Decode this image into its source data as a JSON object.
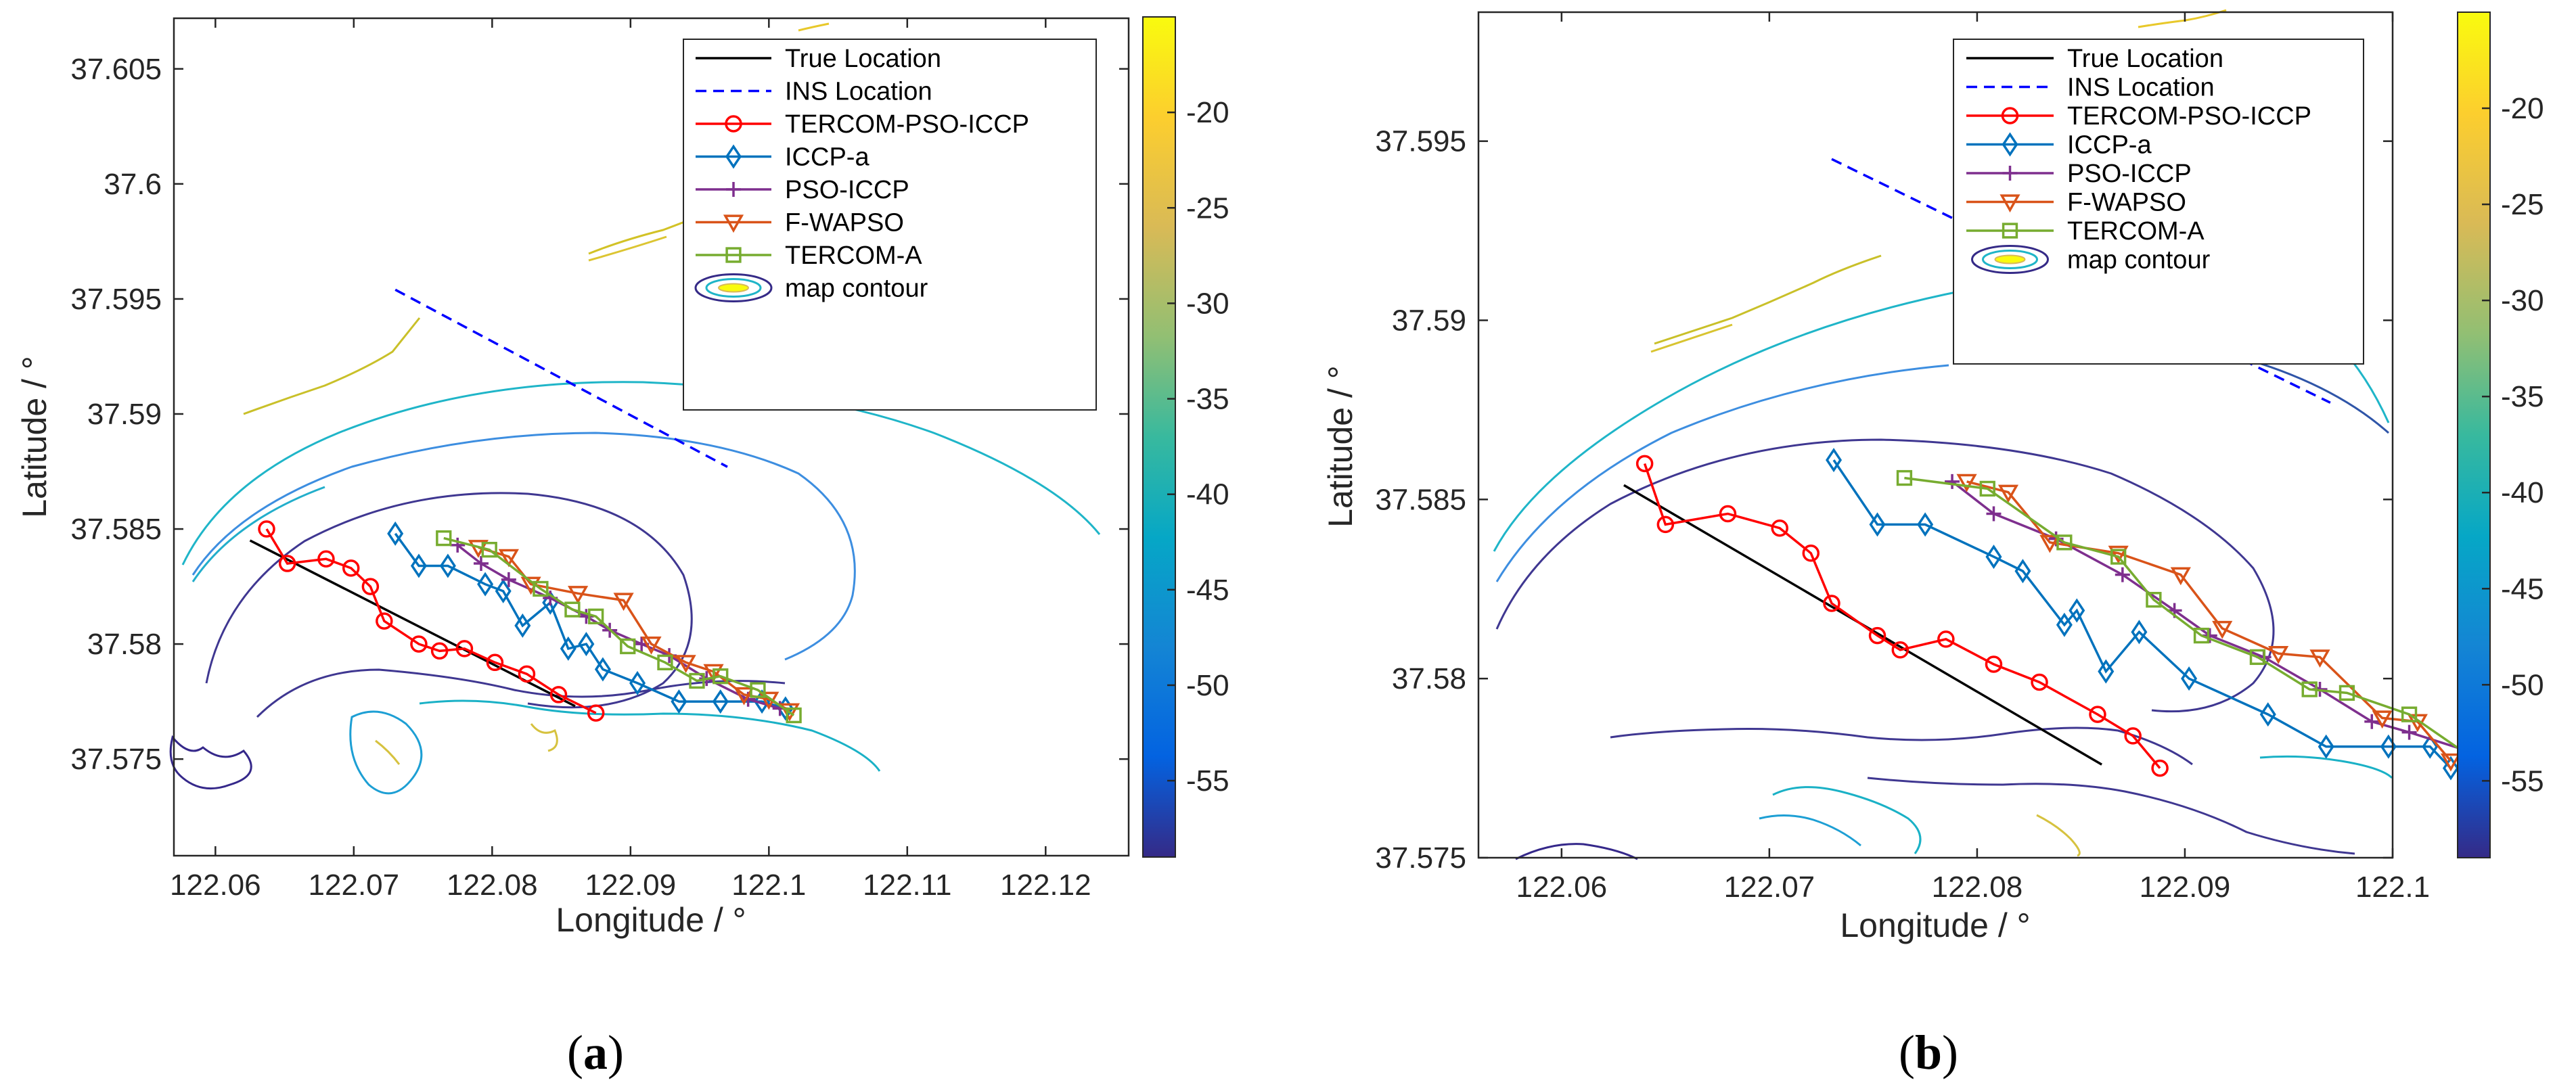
{
  "chart_data": [
    {
      "id": "a",
      "type": "line",
      "caption_letter": "a",
      "xlabel": "Longitude / °",
      "ylabel": "Latitude / °",
      "xlim": [
        122.057,
        122.126
      ],
      "ylim": [
        37.5708,
        37.6072
      ],
      "xticks": [
        122.06,
        122.07,
        122.08,
        122.09,
        122.1,
        122.11,
        122.12
      ],
      "xtick_labels": [
        "122.06",
        "122.07",
        "122.08",
        "122.09",
        "122.1",
        "122.11",
        "122.12"
      ],
      "yticks": [
        37.575,
        37.58,
        37.585,
        37.59,
        37.595,
        37.6,
        37.605
      ],
      "ytick_labels": [
        "37.575",
        "37.58",
        "37.585",
        "37.59",
        "37.595",
        "37.6",
        "37.605"
      ],
      "colorbar": {
        "min": -59,
        "max": -15,
        "ticks": [
          -20,
          -25,
          -30,
          -35,
          -40,
          -45,
          -50,
          -55
        ],
        "tick_labels": [
          "-20",
          "-25",
          "-30",
          "-35",
          "-40",
          "-45",
          "-50",
          "-55"
        ]
      },
      "legend_placement": "top-right",
      "series": [
        {
          "name": "True Location",
          "color": "#000000",
          "marker": "none",
          "dash": false,
          "points": [
            [
              122.0625,
              37.5845
            ],
            [
              122.086,
              37.5773
            ]
          ]
        },
        {
          "name": "INS Location",
          "color": "#0000ff",
          "marker": "none",
          "dash": true,
          "points": [
            [
              122.073,
              37.5954
            ],
            [
              122.097,
              37.5877
            ]
          ]
        },
        {
          "name": "TERCOM-PSO-ICCP",
          "color": "#ff0000",
          "marker": "circle",
          "dash": false,
          "points": [
            [
              122.0637,
              37.585
            ],
            [
              122.0652,
              37.5835
            ],
            [
              122.068,
              37.5837
            ],
            [
              122.0698,
              37.5833
            ],
            [
              122.0712,
              37.5825
            ],
            [
              122.0722,
              37.581
            ],
            [
              122.0747,
              37.58
            ],
            [
              122.0762,
              37.5797
            ],
            [
              122.078,
              37.5798
            ],
            [
              122.0802,
              37.5792
            ],
            [
              122.0825,
              37.5787
            ],
            [
              122.0848,
              37.5778
            ],
            [
              122.0875,
              37.577
            ]
          ]
        },
        {
          "name": "ICCP-a",
          "color": "#0072bd",
          "marker": "diamond",
          "dash": false,
          "points": [
            [
              122.073,
              37.5848
            ],
            [
              122.0747,
              37.5834
            ],
            [
              122.0768,
              37.5834
            ],
            [
              122.0795,
              37.5826
            ],
            [
              122.0808,
              37.5823
            ],
            [
              122.0822,
              37.5808
            ],
            [
              122.0842,
              37.5818
            ],
            [
              122.0855,
              37.5798
            ],
            [
              122.0868,
              37.58
            ],
            [
              122.088,
              37.5789
            ],
            [
              122.0905,
              37.5783
            ],
            [
              122.0935,
              37.5775
            ],
            [
              122.0965,
              37.5775
            ],
            [
              122.0995,
              37.5775
            ],
            [
              122.1012,
              37.5772
            ]
          ]
        },
        {
          "name": "PSO-ICCP",
          "color": "#7e2f8e",
          "marker": "plus",
          "dash": false,
          "points": [
            [
              122.0775,
              37.5843
            ],
            [
              122.0792,
              37.5835
            ],
            [
              122.0812,
              37.5828
            ],
            [
              122.0842,
              37.582
            ],
            [
              122.0868,
              37.5812
            ],
            [
              122.0885,
              37.5806
            ],
            [
              122.0908,
              37.58
            ],
            [
              122.0928,
              37.5795
            ],
            [
              122.0955,
              37.5785
            ],
            [
              122.0985,
              37.5776
            ],
            [
              122.1008,
              37.5772
            ]
          ]
        },
        {
          "name": "F-WAPSO",
          "color": "#d95319",
          "marker": "triangle-down",
          "dash": false,
          "points": [
            [
              122.079,
              37.5842
            ],
            [
              122.0812,
              37.5838
            ],
            [
              122.0828,
              37.5826
            ],
            [
              122.0862,
              37.5822
            ],
            [
              122.0895,
              37.5819
            ],
            [
              122.0915,
              37.58
            ],
            [
              122.094,
              37.5792
            ],
            [
              122.096,
              37.5788
            ],
            [
              122.0982,
              37.5778
            ],
            [
              122.1,
              37.5776
            ],
            [
              122.1015,
              37.5771
            ]
          ]
        },
        {
          "name": "TERCOM-A",
          "color": "#77ac30",
          "marker": "square",
          "dash": false,
          "points": [
            [
              122.0765,
              37.5846
            ],
            [
              122.0798,
              37.5841
            ],
            [
              122.0835,
              37.5824
            ],
            [
              122.0858,
              37.5815
            ],
            [
              122.0875,
              37.5812
            ],
            [
              122.0898,
              37.5799
            ],
            [
              122.0925,
              37.5792
            ],
            [
              122.0948,
              37.5784
            ],
            [
              122.0965,
              37.5786
            ],
            [
              122.0992,
              37.578
            ],
            [
              122.1018,
              37.5769
            ]
          ]
        }
      ]
    },
    {
      "id": "b",
      "type": "line",
      "caption_letter": "b",
      "xlabel": "Longitude / °",
      "ylabel": "Latitude / °",
      "xlim": [
        122.056,
        122.1
      ],
      "ylim": [
        37.575,
        37.5986
      ],
      "xticks": [
        122.06,
        122.07,
        122.08,
        122.09,
        122.1
      ],
      "xtick_labels": [
        "122.06",
        "122.07",
        "122.08",
        "122.09",
        "122.1"
      ],
      "yticks": [
        37.575,
        37.58,
        37.585,
        37.59,
        37.595
      ],
      "ytick_labels": [
        "37.575",
        "37.58",
        "37.585",
        "37.59",
        "37.595"
      ],
      "colorbar": {
        "min": -59,
        "max": -15,
        "ticks": [
          -20,
          -25,
          -30,
          -35,
          -40,
          -45,
          -50,
          -55
        ],
        "tick_labels": [
          "-20",
          "-25",
          "-30",
          "-35",
          "-40",
          "-45",
          "-50",
          "-55"
        ]
      },
      "legend_placement": "top-right",
      "series": [
        {
          "name": "True Location",
          "color": "#000000",
          "marker": "none",
          "dash": false,
          "points": [
            [
              122.063,
              37.5854
            ],
            [
              122.086,
              37.5776
            ]
          ]
        },
        {
          "name": "INS Location",
          "color": "#0000ff",
          "marker": "none",
          "dash": true,
          "points": [
            [
              122.073,
              37.5945
            ],
            [
              122.097,
              37.5877
            ]
          ]
        },
        {
          "name": "TERCOM-PSO-ICCP",
          "color": "#ff0000",
          "marker": "circle",
          "dash": false,
          "points": [
            [
              122.064,
              37.586
            ],
            [
              122.065,
              37.5843
            ],
            [
              122.068,
              37.5846
            ],
            [
              122.0705,
              37.5842
            ],
            [
              122.072,
              37.5835
            ],
            [
              122.073,
              37.5821
            ],
            [
              122.0752,
              37.5812
            ],
            [
              122.0763,
              37.5808
            ],
            [
              122.0785,
              37.5811
            ],
            [
              122.0808,
              37.5804
            ],
            [
              122.083,
              37.5799
            ],
            [
              122.0858,
              37.579
            ],
            [
              122.0875,
              37.5784
            ],
            [
              122.0888,
              37.5775
            ]
          ]
        },
        {
          "name": "ICCP-a",
          "color": "#0072bd",
          "marker": "diamond",
          "dash": false,
          "points": [
            [
              122.0731,
              37.5861
            ],
            [
              122.0752,
              37.5843
            ],
            [
              122.0775,
              37.5843
            ],
            [
              122.0808,
              37.5834
            ],
            [
              122.0822,
              37.583
            ],
            [
              122.0842,
              37.5815
            ],
            [
              122.0848,
              37.5819
            ],
            [
              122.0862,
              37.5802
            ],
            [
              122.0878,
              37.5813
            ],
            [
              122.0902,
              37.58
            ],
            [
              122.094,
              37.579
            ],
            [
              122.0968,
              37.5781
            ],
            [
              122.0998,
              37.5781
            ],
            [
              122.1018,
              37.5781
            ],
            [
              122.1028,
              37.5775
            ]
          ]
        },
        {
          "name": "PSO-ICCP",
          "color": "#7e2f8e",
          "marker": "plus",
          "dash": false,
          "points": [
            [
              122.0788,
              37.5855
            ],
            [
              122.0808,
              37.5846
            ],
            [
              122.0838,
              37.5839
            ],
            [
              122.087,
              37.5829
            ],
            [
              122.0895,
              37.5819
            ],
            [
              122.0912,
              37.5812
            ],
            [
              122.0938,
              37.5806
            ],
            [
              122.0965,
              37.5797
            ],
            [
              122.099,
              37.5788
            ],
            [
              122.1008,
              37.5785
            ],
            [
              122.1035,
              37.578
            ]
          ]
        },
        {
          "name": "F-WAPSO",
          "color": "#d95319",
          "marker": "triangle-down",
          "dash": false,
          "points": [
            [
              122.0795,
              37.5855
            ],
            [
              122.0815,
              37.5852
            ],
            [
              122.0835,
              37.5838
            ],
            [
              122.0868,
              37.5835
            ],
            [
              122.0898,
              37.5829
            ],
            [
              122.0918,
              37.5814
            ],
            [
              122.0945,
              37.5807
            ],
            [
              122.0965,
              37.5806
            ],
            [
              122.0995,
              37.5789
            ],
            [
              122.1012,
              37.5788
            ],
            [
              122.1028,
              37.5777
            ]
          ]
        },
        {
          "name": "TERCOM-A",
          "color": "#77ac30",
          "marker": "square",
          "dash": false,
          "points": [
            [
              122.0765,
              37.5856
            ],
            [
              122.0805,
              37.5853
            ],
            [
              122.0842,
              37.5838
            ],
            [
              122.0868,
              37.5834
            ],
            [
              122.0885,
              37.5822
            ],
            [
              122.0908,
              37.5812
            ],
            [
              122.0935,
              37.5806
            ],
            [
              122.096,
              37.5797
            ],
            [
              122.0978,
              37.5796
            ],
            [
              122.1008,
              37.579
            ],
            [
              122.1038,
              37.5778
            ]
          ]
        }
      ]
    }
  ],
  "legend_labels": [
    "True Location",
    "INS Location",
    "TERCOM-PSO-ICCP",
    "ICCP-a",
    "PSO-ICCP",
    "F-WAPSO",
    "TERCOM-A",
    "map contour"
  ],
  "captions": {
    "a": "a",
    "b": "b"
  }
}
